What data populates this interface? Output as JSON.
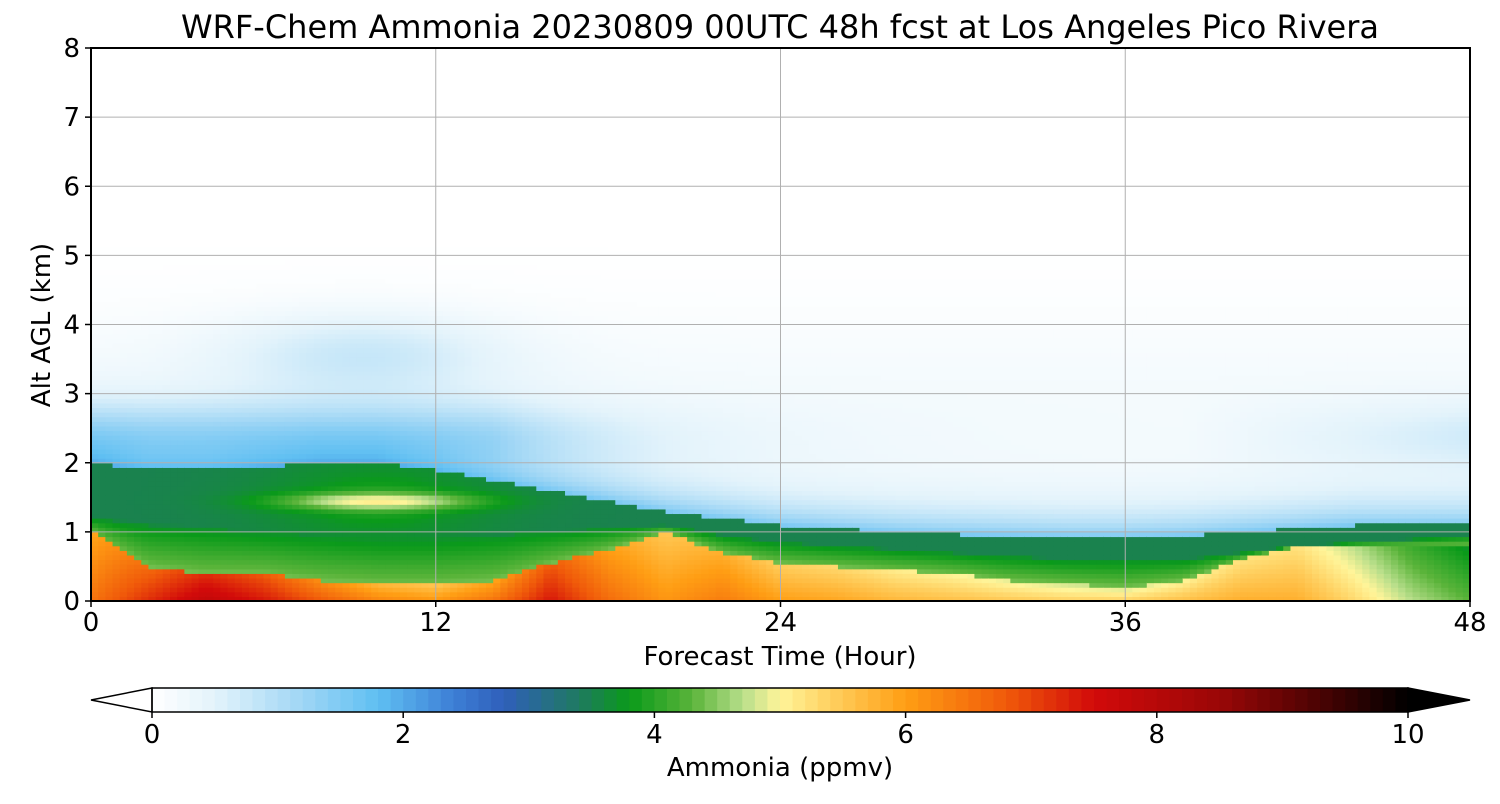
{
  "chart_data": {
    "type": "heatmap",
    "title": "WRF-Chem Ammonia  20230809 00UTC 48h fcst at Los Angeles Pico Rivera",
    "xlabel": "Forecast Time (Hour)",
    "ylabel": "Alt AGL (km)",
    "xlim": [
      0,
      48
    ],
    "ylim": [
      0,
      8
    ],
    "x_ticks": [
      0,
      12,
      24,
      36,
      48
    ],
    "y_ticks": [
      0,
      1,
      2,
      3,
      4,
      5,
      6,
      7,
      8
    ],
    "grid": true,
    "colorbar": {
      "label": "Ammonia  (ppmv)",
      "orientation": "horizontal",
      "placement": "bottom",
      "range": [
        0,
        10
      ],
      "ticks": [
        0,
        2,
        4,
        6,
        8,
        10
      ],
      "extend": "both",
      "stops": [
        {
          "value": 0.0,
          "color": "#ffffff"
        },
        {
          "value": 0.5,
          "color": "#e3f3fb"
        },
        {
          "value": 1.2,
          "color": "#9fd6f5"
        },
        {
          "value": 1.8,
          "color": "#5fbff2"
        },
        {
          "value": 2.4,
          "color": "#3d7fd6"
        },
        {
          "value": 2.8,
          "color": "#2f5fba"
        },
        {
          "value": 3.4,
          "color": "#1f7a60"
        },
        {
          "value": 3.8,
          "color": "#0a9a1a"
        },
        {
          "value": 4.3,
          "color": "#5ab43a"
        },
        {
          "value": 4.7,
          "color": "#b7de8a"
        },
        {
          "value": 5.0,
          "color": "#fff59a"
        },
        {
          "value": 5.4,
          "color": "#ffd060"
        },
        {
          "value": 6.0,
          "color": "#ff9e14"
        },
        {
          "value": 6.8,
          "color": "#f05a0a"
        },
        {
          "value": 7.5,
          "color": "#d20a0a"
        },
        {
          "value": 8.5,
          "color": "#9a0707"
        },
        {
          "value": 9.3,
          "color": "#4a0303"
        },
        {
          "value": 10.0,
          "color": "#000000"
        }
      ]
    },
    "fields": {
      "hours": [
        0,
        2,
        4,
        6,
        8,
        10,
        12,
        14,
        16,
        18,
        20,
        22,
        24,
        26,
        28,
        30,
        32,
        34,
        36,
        38,
        40,
        42,
        44,
        46,
        48
      ],
      "hot_layer_top_km": [
        1.0,
        0.5,
        0.4,
        0.4,
        0.3,
        0.25,
        0.25,
        0.3,
        0.55,
        0.75,
        1.0,
        0.7,
        0.55,
        0.5,
        0.45,
        0.4,
        0.3,
        0.25,
        0.2,
        0.3,
        0.6,
        0.8,
        0.8,
        0.8,
        0.8
      ],
      "hot_layer_peak_ppmv": [
        6.5,
        7.2,
        7.8,
        7.4,
        6.8,
        6.3,
        6.1,
        6.5,
        7.4,
        6.6,
        6.1,
        6.4,
        6.0,
        5.9,
        5.7,
        5.6,
        5.5,
        5.4,
        5.4,
        5.6,
        5.8,
        5.8,
        5.3,
        4.7,
        4.3
      ],
      "green_layer_top_km": [
        1.2,
        1.1,
        1.05,
        1.0,
        0.95,
        0.9,
        0.9,
        0.95,
        1.0,
        1.05,
        1.1,
        0.95,
        0.85,
        0.8,
        0.75,
        0.7,
        0.65,
        0.6,
        0.6,
        0.6,
        0.7,
        0.8,
        0.85,
        0.9,
        0.95
      ],
      "boundary_layer_top_km": [
        2.0,
        1.9,
        1.9,
        1.95,
        2.0,
        2.0,
        1.9,
        1.75,
        1.6,
        1.45,
        1.3,
        1.2,
        1.1,
        1.05,
        1.0,
        0.97,
        0.95,
        0.93,
        0.93,
        0.95,
        1.0,
        1.05,
        1.1,
        1.1,
        1.1
      ],
      "elevated_core": {
        "center_hour": 10,
        "center_km": 1.45,
        "width_h": 3.2,
        "depth_km": 0.12,
        "peak_ppmv": 5.1
      },
      "residual_layer": {
        "center_km": 2.4,
        "max_ppmv": 1.3
      },
      "mid_level_plume": {
        "center_hour": 9.5,
        "center_km": 3.6,
        "max_ppmv": 0.6
      }
    }
  }
}
